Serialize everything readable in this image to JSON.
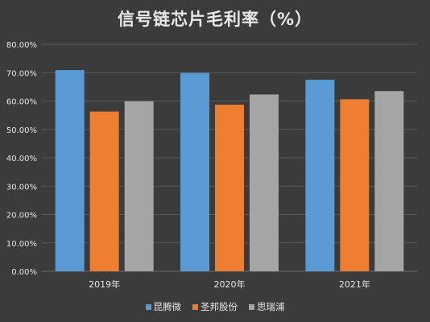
{
  "chart_data": {
    "type": "bar",
    "title": "信号链芯片毛利率（%）",
    "categories": [
      "2019年",
      "2020年",
      "2021年"
    ],
    "series": [
      {
        "name": "昆腾微",
        "values": [
          70.9,
          69.9,
          67.5
        ],
        "color": "#5b9bd5"
      },
      {
        "name": "圣邦股份",
        "values": [
          56.3,
          58.7,
          60.6
        ],
        "color": "#ed7d31"
      },
      {
        "name": "思瑞浦",
        "values": [
          59.9,
          62.3,
          63.5
        ],
        "color": "#a5a5a5"
      }
    ],
    "ylim": [
      0,
      80
    ],
    "yticks": [
      "0.00%",
      "10.00%",
      "20.00%",
      "30.00%",
      "40.00%",
      "50.00%",
      "60.00%",
      "70.00%",
      "80.00%"
    ],
    "grid": true,
    "legend_position": "bottom"
  },
  "colors": {
    "background": "#3b3b3b",
    "gridline": "#5a5a5a",
    "text": "#e6e6e6"
  }
}
